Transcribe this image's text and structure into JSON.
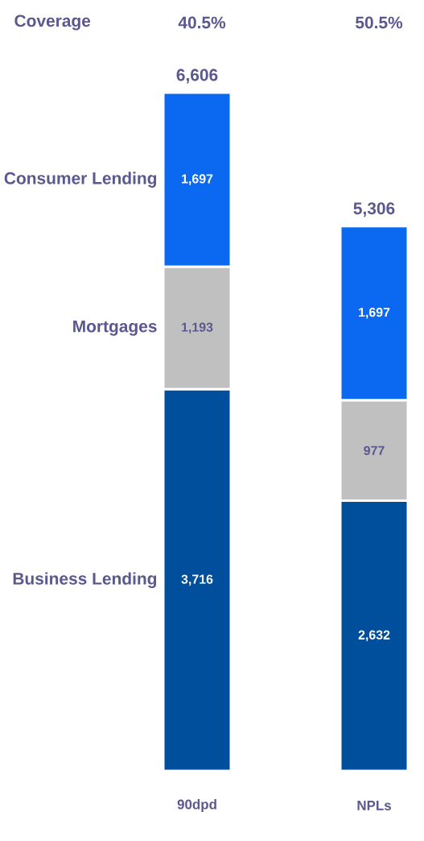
{
  "chart_data": {
    "type": "bar",
    "stacked": true,
    "categories": [
      "90dpd",
      "NPLs"
    ],
    "series": [
      {
        "name": "Business Lending",
        "color": "#004f9c",
        "values": [
          3716,
          2632
        ],
        "value_labels": [
          "3,716",
          "2,632"
        ]
      },
      {
        "name": "Mortgages",
        "color": "#c0c0c0",
        "values": [
          1193,
          977
        ],
        "value_labels": [
          "1,193",
          "977"
        ]
      },
      {
        "name": "Consumer Lending",
        "color": "#0a69f0",
        "values": [
          1697,
          1697
        ],
        "value_labels": [
          "1,697",
          "1,697"
        ]
      }
    ],
    "totals": [
      "6,606",
      "5,306"
    ],
    "annotations": [
      "Coverage",
      "40.5%",
      "50.5%"
    ]
  }
}
